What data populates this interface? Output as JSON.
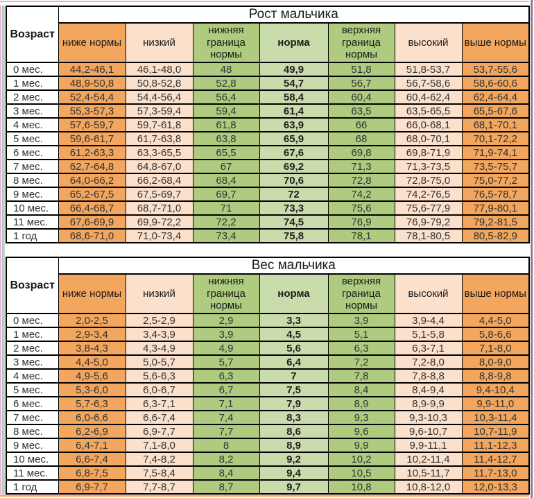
{
  "colors": {
    "orange": "#F2A65E",
    "peach": "#FBE0CB",
    "green_mid": "#AECB7F",
    "green_light": "#CBDCAC",
    "grid": "#000000"
  },
  "tables": [
    {
      "title": "Рост мальчика",
      "age_header": "Возраст",
      "columns": [
        "ниже нормы",
        "низкий",
        "нижняя граница нормы",
        "норма",
        "верхняя граница нормы",
        "высокий",
        "выше нормы"
      ],
      "rows": [
        {
          "age": "0 мес.",
          "values": [
            "44,2-46,1",
            "46,1-48,0",
            "48",
            "49,9",
            "51,8",
            "51,8-53,7",
            "53,7-55,6"
          ]
        },
        {
          "age": "1 мес.",
          "values": [
            "48,9-50,8",
            "50,8-52,8",
            "52,8",
            "54,7",
            "56,7",
            "56,7-58,6",
            "58,6-60,6"
          ]
        },
        {
          "age": "2 мес.",
          "values": [
            "52,4-54,4",
            "54,4-56,4",
            "56,4",
            "58,4",
            "60,4",
            "60,4-62,4",
            "62,4-64,4"
          ]
        },
        {
          "age": "3 мес.",
          "values": [
            "55,3-57,3",
            "57,3-59,4",
            "59,4",
            "61,4",
            "63,5",
            "63,5-65,5",
            "65,5-67,6"
          ]
        },
        {
          "age": "4 мес.",
          "values": [
            "57,6-59,7",
            "59,7-61,8",
            "61,8",
            "63,9",
            "66",
            "66,0-68,1",
            "68,1-70,1"
          ]
        },
        {
          "age": "5 мес.",
          "values": [
            "59,6-61,7",
            "61,7-63,8",
            "63,8",
            "65,9",
            "68",
            "68,0-70,1",
            "70,1-72,2"
          ]
        },
        {
          "age": "6 мес.",
          "values": [
            "61,2-63,3",
            "63,3-65,5",
            "65,5",
            "67,6",
            "69,8",
            "69,8-71,9",
            "71,9-74,1"
          ]
        },
        {
          "age": "7 мес.",
          "values": [
            "62,7-64,8",
            "64,8-67,0",
            "67",
            "69,2",
            "71,3",
            "71,3-73,5",
            "73,5-75,7"
          ]
        },
        {
          "age": "8 мес.",
          "values": [
            "64,0-66,2",
            "66,2-68,4",
            "68,4",
            "70,6",
            "72,8",
            "72,8-75,0",
            "75,0-77,2"
          ]
        },
        {
          "age": "9 мес.",
          "values": [
            "65,2-67,5",
            "67,5-69,7",
            "69,7",
            "72",
            "74,2",
            "74,2-76,5",
            "76,5-78,7"
          ]
        },
        {
          "age": "10 мес.",
          "values": [
            "66,4-68,7",
            "68,7-71,0",
            "71",
            "73,3",
            "75,6",
            "75,6-77,9",
            "77,9-80,1"
          ]
        },
        {
          "age": "11 мес.",
          "values": [
            "67,6-69,9",
            "69,9-72,2",
            "72,2",
            "74,5",
            "76,9",
            "76,9-79,2",
            "79,2-81,5"
          ]
        },
        {
          "age": "1 год",
          "values": [
            "68,6-71,0",
            "71,0-73,4",
            "73,4",
            "75,8",
            "78,1",
            "78,1-80,5",
            "80,5-82,9"
          ]
        }
      ]
    },
    {
      "title": "Вес мальчика",
      "age_header": "Возраст",
      "columns": [
        "ниже нормы",
        "низкий",
        "нижняя граница нормы",
        "норма",
        "верхняя граница нормы",
        "высокий",
        "выше нормы"
      ],
      "rows": [
        {
          "age": "0 мес.",
          "values": [
            "2,0-2,5",
            "2,5-2,9",
            "2,9",
            "3,3",
            "3,9",
            "3,9-4,4",
            "4,4-5,0"
          ]
        },
        {
          "age": "1 мес.",
          "values": [
            "2,9-3,4",
            "3,4-3,9",
            "3,9",
            "4,5",
            "5,1",
            "5,1-5,8",
            "5,8-6,6"
          ]
        },
        {
          "age": "2 мес.",
          "values": [
            "3,8-4,3",
            "4,3-4,9",
            "4,9",
            "5,6",
            "6,3",
            "6,3-7,1",
            "7,1-8,0"
          ]
        },
        {
          "age": "3 мес.",
          "values": [
            "4,4-5,0",
            "5,0-5,7",
            "5,7",
            "6,4",
            "7,2",
            "7,2-8,0",
            "8,0-9,0"
          ]
        },
        {
          "age": "4 мес.",
          "values": [
            "4,9-5,6",
            "5,6-6,3",
            "6,3",
            "7",
            "7,8",
            "7,8-8,8",
            "8,8-9,8"
          ]
        },
        {
          "age": "5 мес.",
          "values": [
            "5,3-6,0",
            "6,0-6,7",
            "6,7",
            "7,5",
            "8,4",
            "8,4-9,4",
            "9,4-10,4"
          ]
        },
        {
          "age": "6 мес.",
          "values": [
            "5,7-6,3",
            "6,3-7,1",
            "7,1",
            "7,9",
            "8,9",
            "8,9-9,9",
            "9,9-11,0"
          ]
        },
        {
          "age": "7 мес.",
          "values": [
            "6,0-6,6",
            "6,6-7,4",
            "7,4",
            "8,3",
            "9,3",
            "9,3-10,3",
            "10,3-11,4"
          ]
        },
        {
          "age": "8 мес.",
          "values": [
            "6,2-6,9",
            "6,9-7,7",
            "7,7",
            "8,6",
            "9,6",
            "9,6-10,7",
            "10,7-11,9"
          ]
        },
        {
          "age": "9 мес.",
          "values": [
            "6,4-7,1",
            "7,1-8,0",
            "8",
            "8,9",
            "9,9",
            "9,9-11,1",
            "11,1-12,3"
          ]
        },
        {
          "age": "10 мес.",
          "values": [
            "6,6-7,4",
            "7,4-8,2",
            "8,2",
            "9,2",
            "10,2",
            "10,2-11,4",
            "11,4-12,7"
          ]
        },
        {
          "age": "11 мес.",
          "values": [
            "6,8-7,5",
            "7,5-8,4",
            "8,4",
            "9,4",
            "10,5",
            "10,5-11,7",
            "11,7-13,0"
          ]
        },
        {
          "age": "1 год",
          "values": [
            "6,9-7,7",
            "7,7-8,7",
            "8,7",
            "9,7",
            "10,8",
            "10,8-12,0",
            "12,0-13,3"
          ]
        }
      ]
    }
  ]
}
